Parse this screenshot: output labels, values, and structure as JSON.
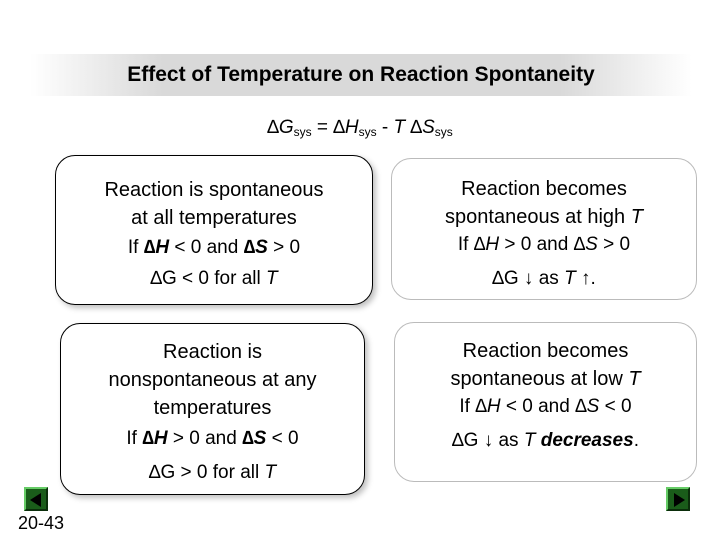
{
  "title": "Effect of Temperature on Reaction Spontaneity",
  "equation": {
    "delta1": "∆",
    "g": "G",
    "sys1": "sys",
    "eq": " = ",
    "delta2": "∆",
    "h": "H",
    "sys2": "sys",
    "minus": " - ",
    "t": "T",
    "delta3": " ∆",
    "s": "S",
    "sys3": "sys"
  },
  "boxes": {
    "top_left": {
      "heading_1": "Reaction is spontaneous",
      "heading_2": "at all temperatures",
      "cond_if": "If ",
      "cond_dh": "∆H",
      "cond_mid": " < 0 and ",
      "cond_ds": "∆S",
      "cond_end": " > 0",
      "res_dg": "∆G",
      "res_mid": " < 0 for all ",
      "res_t": "T"
    },
    "top_right": {
      "heading_1": "Reaction becomes",
      "heading_2a": "spontaneous at high ",
      "heading_2t": "T",
      "cond_if": "If ",
      "cond_dh": "∆H",
      "cond_mid": " > 0 and ",
      "cond_ds": "∆S",
      "cond_end": " > 0",
      "res_dg": "∆G",
      "res_arrow": " ↓ as ",
      "res_t": "T",
      "res_end": " ↑."
    },
    "bottom_left": {
      "heading_1": "Reaction is",
      "heading_2": "nonspontaneous at any",
      "heading_3": "temperatures",
      "cond_if": "If ",
      "cond_dh": "∆H",
      "cond_mid": " > 0 and ",
      "cond_ds": "∆S",
      "cond_end": " < 0",
      "res_dg": "∆G",
      "res_mid": " > 0 for all ",
      "res_t": "T"
    },
    "bottom_right": {
      "heading_1": "Reaction becomes",
      "heading_2a": "spontaneous at low ",
      "heading_2t": "T",
      "cond_if": "If ",
      "cond_dh": "∆H",
      "cond_mid": " < 0 and ",
      "cond_ds": "∆S",
      "cond_end": " < 0",
      "res_dg": "∆G",
      "res_arrow": " ↓ as ",
      "res_t": "T",
      "res_dec": " decreases",
      "res_end": "."
    }
  },
  "slide_number": "20-43",
  "nav": {
    "prev_icon": "triangle-left",
    "next_icon": "triangle-right",
    "button_color": "#1a5c1a"
  }
}
